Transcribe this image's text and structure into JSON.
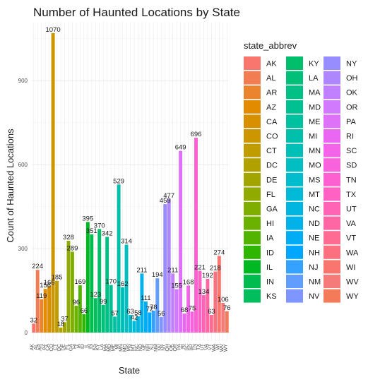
{
  "chart_data": {
    "type": "bar",
    "title": "Number of Haunted Locations by State",
    "xlabel": "State",
    "ylabel": "Count of Haunted Locations",
    "ylim": [
      0,
      1110
    ],
    "yticks": [
      0,
      300,
      600,
      900
    ],
    "grid": true,
    "legend": {
      "title": "state_abbrev",
      "placement": "right",
      "columns": 3
    },
    "categories": [
      "AK",
      "AL",
      "AR",
      "AZ",
      "CA",
      "CO",
      "CT",
      "DC",
      "DE",
      "FL",
      "GA",
      "HI",
      "IA",
      "ID",
      "IL",
      "IN",
      "KS",
      "KY",
      "LA",
      "MA",
      "MD",
      "ME",
      "MI",
      "MN",
      "MO",
      "MS",
      "MT",
      "NC",
      "ND",
      "NE",
      "NH",
      "NJ",
      "NM",
      "NV",
      "NY",
      "OH",
      "OK",
      "OR",
      "PA",
      "RI",
      "SC",
      "SD",
      "TN",
      "TX",
      "UT",
      "VA",
      "VT",
      "WA",
      "WI",
      "WV",
      "WY"
    ],
    "values": [
      32,
      224,
      119,
      156,
      166,
      1070,
      185,
      18,
      37,
      328,
      289,
      96,
      169,
      66,
      395,
      351,
      123,
      370,
      99,
      342,
      170,
      57,
      529,
      162,
      314,
      63,
      42,
      58,
      211,
      111,
      72,
      78,
      194,
      56,
      459,
      477,
      211,
      155,
      649,
      68,
      168,
      75,
      696,
      221,
      134,
      192,
      63,
      218,
      274,
      106,
      76
    ],
    "colors": [
      "#F8766D",
      "#F27D52",
      "#EA842F",
      "#E28A00",
      "#D89000",
      "#CC9600",
      "#BF9C00",
      "#B1A100",
      "#A2A500",
      "#91AA00",
      "#7FAE00",
      "#6BB100",
      "#53B400",
      "#2EB600",
      "#00B823",
      "#00BB4E",
      "#00BD5E",
      "#00BE6C",
      "#00BF79",
      "#00C086",
      "#00C092",
      "#00C19F",
      "#00C0AB",
      "#00BFB7",
      "#00BEC2",
      "#00BCCD",
      "#00BAD8",
      "#00B6E1",
      "#00B1EA",
      "#00ACF3",
      "#00A6FF",
      "#35A2FF",
      "#619CFF",
      "#7F95FF",
      "#988DFF",
      "#AE87FF",
      "#C180FF",
      "#D17AFE",
      "#DF70F8",
      "#EA67F1",
      "#F364E9",
      "#F962DD",
      "#FD61D1",
      "#FF62C3",
      "#FF64B5",
      "#FF67A4",
      "#FE6C93",
      "#FC717F",
      "#F8766D",
      "#F57A7A",
      "#F37B59"
    ],
    "legend_entries": [
      "AK",
      "AL",
      "AR",
      "AZ",
      "CA",
      "CO",
      "CT",
      "DC",
      "DE",
      "FL",
      "GA",
      "HI",
      "IA",
      "ID",
      "IL",
      "IN",
      "KS",
      "KY",
      "LA",
      "MA",
      "MD",
      "ME",
      "MI",
      "MN",
      "MO",
      "MS",
      "MT",
      "NC",
      "ND",
      "NE",
      "NH",
      "NJ",
      "NM",
      "NV",
      "NY",
      "OH",
      "OK",
      "OR",
      "PA",
      "RI",
      "SC",
      "SD",
      "TN",
      "TX",
      "UT",
      "VA",
      "VT",
      "WA",
      "WI",
      "WV",
      "WY"
    ]
  }
}
